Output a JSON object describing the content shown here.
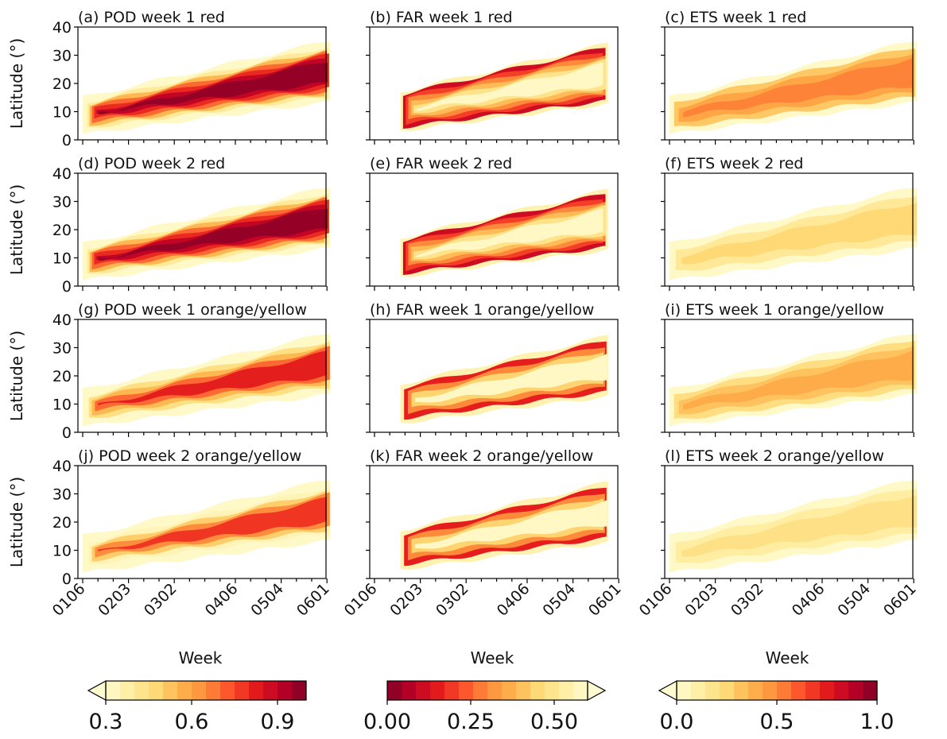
{
  "figure": {
    "x_axis_label": "Week",
    "y_axis_label": "Latitude (°)"
  },
  "chart_data": [
    {
      "type": "heatmap",
      "panel": "a",
      "title": "(a) POD week 1 red",
      "metric": "POD",
      "lead": "week 1",
      "alert": "red",
      "ylim": [
        0,
        40
      ],
      "yticks": [
        0,
        10,
        20,
        30,
        40
      ],
      "x_ticks_labeled": [
        "0106",
        "0203",
        "0302",
        "0406",
        "0504",
        "0601"
      ],
      "ylabel": "Latitude (°)",
      "xlabel": "",
      "colorbar": 1,
      "levels": [
        0,
        0.25,
        0.4,
        0.55,
        0.7,
        0.8,
        0.9,
        0.97
      ]
    },
    {
      "type": "heatmap",
      "panel": "b",
      "title": "(b) FAR week 1 red",
      "metric": "FAR",
      "lead": "week 1",
      "alert": "red",
      "ylim": [
        0,
        40
      ],
      "yticks": [
        0,
        10,
        20,
        30,
        40
      ],
      "x_ticks_labeled": [
        "0106",
        "0203",
        "0302",
        "0406",
        "0504",
        "0601"
      ],
      "ylabel": "",
      "xlabel": "",
      "colorbar": 2,
      "levels": [
        0,
        0.5,
        0.62,
        0.75,
        0.85,
        0.92,
        0.97
      ]
    },
    {
      "type": "heatmap",
      "panel": "c",
      "title": "(c) ETS week 1 red",
      "metric": "ETS",
      "lead": "week 1",
      "alert": "red",
      "ylim": [
        0,
        40
      ],
      "yticks": [
        0,
        10,
        20,
        30,
        40
      ],
      "x_ticks_labeled": [
        "0106",
        "0203",
        "0302",
        "0406",
        "0504",
        "0601"
      ],
      "ylabel": "",
      "xlabel": "",
      "colorbar": 3,
      "levels": [
        0,
        0.3,
        0.42,
        0.52
      ]
    },
    {
      "type": "heatmap",
      "panel": "d",
      "title": "(d) POD week 2 red",
      "metric": "POD",
      "lead": "week 2",
      "alert": "red",
      "ylim": [
        0,
        40
      ],
      "yticks": [
        0,
        10,
        20,
        30,
        40
      ],
      "x_ticks_labeled": [
        "0106",
        "0203",
        "0302",
        "0406",
        "0504",
        "0601"
      ],
      "ylabel": "Latitude (°)",
      "xlabel": "",
      "colorbar": 1,
      "levels": [
        0,
        0.25,
        0.4,
        0.55,
        0.7,
        0.8,
        0.9,
        0.97
      ]
    },
    {
      "type": "heatmap",
      "panel": "e",
      "title": "(e) FAR week 2 red",
      "metric": "FAR",
      "lead": "week 2",
      "alert": "red",
      "ylim": [
        0,
        40
      ],
      "yticks": [
        0,
        10,
        20,
        30,
        40
      ],
      "x_ticks_labeled": [
        "0106",
        "0203",
        "0302",
        "0406",
        "0504",
        "0601"
      ],
      "ylabel": "",
      "xlabel": "",
      "colorbar": 2,
      "levels": [
        0,
        0.5,
        0.62,
        0.75,
        0.85,
        0.92,
        0.97
      ]
    },
    {
      "type": "heatmap",
      "panel": "f",
      "title": "(f) ETS week 2 red",
      "metric": "ETS",
      "lead": "week 2",
      "alert": "red",
      "ylim": [
        0,
        40
      ],
      "yticks": [
        0,
        10,
        20,
        30,
        40
      ],
      "x_ticks_labeled": [
        "0106",
        "0203",
        "0302",
        "0406",
        "0504",
        "0601"
      ],
      "ylabel": "",
      "xlabel": "",
      "colorbar": 3,
      "levels": [
        0,
        0.15,
        0.25
      ]
    },
    {
      "type": "heatmap",
      "panel": "g",
      "title": "(g) POD week 1 orange/yellow",
      "metric": "POD",
      "lead": "week 1",
      "alert": "orange/yellow",
      "ylim": [
        0,
        40
      ],
      "yticks": [
        0,
        10,
        20,
        30,
        40
      ],
      "x_ticks_labeled": [
        "0106",
        "0203",
        "0302",
        "0406",
        "0504",
        "0601"
      ],
      "ylabel": "Latitude (°)",
      "xlabel": "",
      "colorbar": 1,
      "levels": [
        0,
        0.3,
        0.45,
        0.55,
        0.7,
        0.82
      ]
    },
    {
      "type": "heatmap",
      "panel": "h",
      "title": "(h) FAR week 1 orange/yellow",
      "metric": "FAR",
      "lead": "week 1",
      "alert": "orange/yellow",
      "ylim": [
        0,
        40
      ],
      "yticks": [
        0,
        10,
        20,
        30,
        40
      ],
      "x_ticks_labeled": [
        "0106",
        "0203",
        "0302",
        "0406",
        "0504",
        "0601"
      ],
      "ylabel": "",
      "xlabel": "",
      "colorbar": 2,
      "levels": [
        0,
        0.3,
        0.45,
        0.6,
        0.72
      ]
    },
    {
      "type": "heatmap",
      "panel": "i",
      "title": "(i) ETS week 1 orange/yellow",
      "metric": "ETS",
      "lead": "week 1",
      "alert": "orange/yellow",
      "ylim": [
        0,
        40
      ],
      "yticks": [
        0,
        10,
        20,
        30,
        40
      ],
      "x_ticks_labeled": [
        "0106",
        "0203",
        "0302",
        "0406",
        "0504",
        "0601"
      ],
      "ylabel": "",
      "xlabel": "",
      "colorbar": 3,
      "levels": [
        0,
        0.22,
        0.32,
        0.4
      ]
    },
    {
      "type": "heatmap",
      "panel": "j",
      "title": "(j) POD week 2 orange/yellow",
      "metric": "POD",
      "lead": "week 2",
      "alert": "orange/yellow",
      "ylim": [
        0,
        40
      ],
      "yticks": [
        0,
        10,
        20,
        30,
        40
      ],
      "x_ticks_labeled": [
        "0106",
        "0203",
        "0302",
        "0406",
        "0504",
        "0601"
      ],
      "ylabel": "Latitude (°)",
      "xlabel": "Week",
      "colorbar": 1,
      "levels": [
        0,
        0.2,
        0.35,
        0.5,
        0.65,
        0.78
      ]
    },
    {
      "type": "heatmap",
      "panel": "k",
      "title": "(k) FAR week 2 orange/yellow",
      "metric": "FAR",
      "lead": "week 2",
      "alert": "orange/yellow",
      "ylim": [
        0,
        40
      ],
      "yticks": [
        0,
        10,
        20,
        30,
        40
      ],
      "x_ticks_labeled": [
        "0106",
        "0203",
        "0302",
        "0406",
        "0504",
        "0601"
      ],
      "ylabel": "",
      "xlabel": "Week",
      "colorbar": 2,
      "levels": [
        0,
        0.15,
        0.28,
        0.4,
        0.5
      ]
    },
    {
      "type": "heatmap",
      "panel": "l",
      "title": "(l) ETS week 2 orange/yellow",
      "metric": "ETS",
      "lead": "week 2",
      "alert": "orange/yellow",
      "ylim": [
        0,
        40
      ],
      "yticks": [
        0,
        10,
        20,
        30,
        40
      ],
      "x_ticks_labeled": [
        "0106",
        "0203",
        "0302",
        "0406",
        "0504",
        "0601"
      ],
      "ylabel": "",
      "xlabel": "Week",
      "colorbar": 3,
      "levels": [
        0,
        0.12,
        0.2
      ]
    }
  ],
  "colorbars": [
    {
      "id": 1,
      "metric": "POD",
      "range": [
        0.3,
        1.0
      ],
      "extend": "min",
      "ticks": [
        "0.3",
        "0.6",
        "0.9"
      ],
      "tick_values": [
        0.3,
        0.6,
        0.9
      ],
      "colormap": "YlOrRd",
      "reversed": false
    },
    {
      "id": 2,
      "metric": "FAR",
      "range": [
        0.0,
        0.6
      ],
      "extend": "max",
      "ticks": [
        "0.00",
        "0.25",
        "0.50"
      ],
      "tick_values": [
        0.0,
        0.25,
        0.5
      ],
      "colormap": "YlOrRd",
      "reversed": true
    },
    {
      "id": 3,
      "metric": "ETS",
      "range": [
        0.0,
        1.0
      ],
      "extend": "min",
      "ticks": [
        "0.0",
        "0.5",
        "1.0"
      ],
      "tick_values": [
        0.0,
        0.5,
        1.0
      ],
      "colormap": "YlOrRd",
      "reversed": false
    }
  ],
  "colors": [
    "#fffbd0",
    "#ffeda0",
    "#fed976",
    "#feb24c",
    "#fd8d3c",
    "#fc4e2a",
    "#e31a1c",
    "#bd0026",
    "#800026"
  ]
}
